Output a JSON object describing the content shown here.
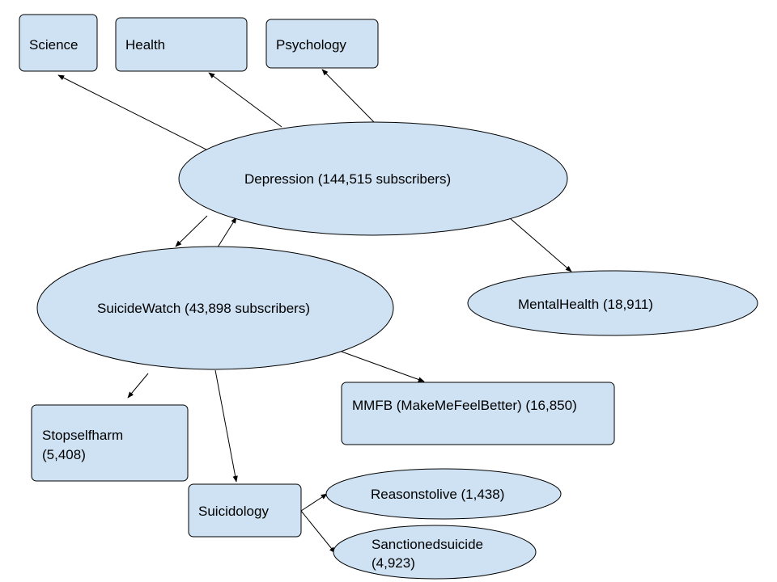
{
  "nodes": {
    "science": {
      "label": "Science"
    },
    "health": {
      "label": "Health"
    },
    "psychology": {
      "label": "Psychology"
    },
    "depression": {
      "label": "Depression (144,515 subscribers)"
    },
    "suicidewatch": {
      "label": "SuicideWatch (43,898 subscribers)"
    },
    "mentalhealth": {
      "label": "MentalHealth (18,911)"
    },
    "mmfb": {
      "label": "MMFB (MakeMeFeelBetter) (16,850)"
    },
    "stopselfharm": {
      "line1": "Stopselfharm",
      "line2": "(5,408)"
    },
    "suicidology": {
      "label": "Suicidology"
    },
    "reasonstolive": {
      "label": "Reasonstolive (1,438)"
    },
    "sanctionedsuicide": {
      "line1": "Sanctionedsuicide",
      "line2": "(4,923)"
    }
  },
  "colors": {
    "node_fill": "#cfe2f3",
    "node_stroke": "#000000",
    "edge": "#000000"
  }
}
